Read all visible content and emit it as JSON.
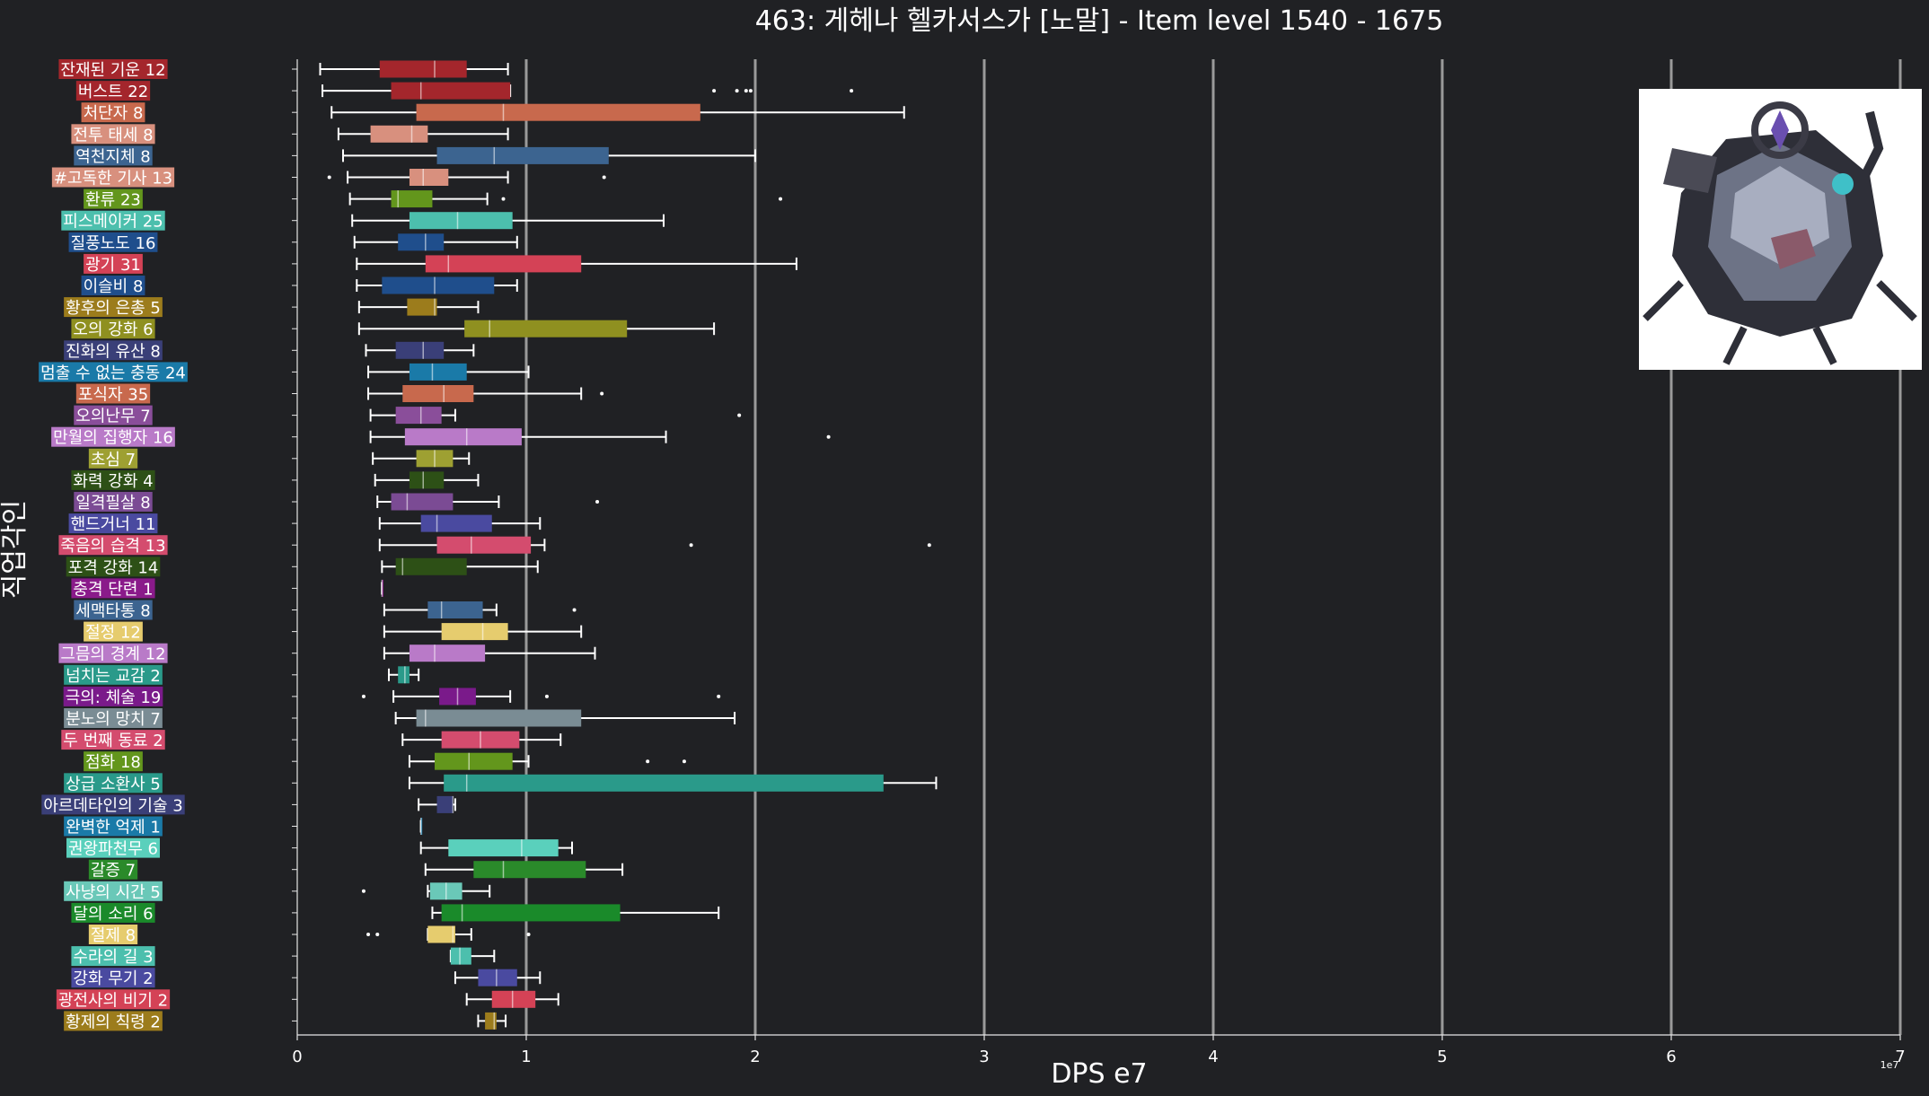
{
  "chart_data": {
    "type": "box",
    "title": "463: 게헤나 헬카서스가 [노말] - Item level 1540 - 1675",
    "xlabel": "DPS e7",
    "ylabel": "직업각인",
    "x_tick_labels": [
      "0",
      "1",
      "2",
      "3",
      "4",
      "5",
      "6",
      "7"
    ],
    "x_ticks": [
      0,
      1,
      2,
      3,
      4,
      5,
      6,
      7
    ],
    "x_offset_label": "1e7",
    "xlim": [
      0,
      7
    ],
    "grid": "vertical",
    "categories": [
      {
        "label": "잔재된 기운 12",
        "color": "#a4262c",
        "whislo": 0.1,
        "q1": 0.36,
        "med": 0.6,
        "q3": 0.74,
        "whishi": 0.92,
        "fliers": []
      },
      {
        "label": "버스트 22",
        "color": "#a4262c",
        "whislo": 0.11,
        "q1": 0.41,
        "med": 0.54,
        "q3": 0.93,
        "whishi": 0.93,
        "fliers": [
          1.82,
          1.92,
          1.96,
          1.98,
          2.42
        ]
      },
      {
        "label": "처단자 8",
        "color": "#c8694d",
        "whislo": 0.15,
        "q1": 0.52,
        "med": 0.9,
        "q3": 1.76,
        "whishi": 2.65,
        "fliers": []
      },
      {
        "label": "전투 태세 8",
        "color": "#d8907e",
        "whislo": 0.18,
        "q1": 0.32,
        "med": 0.5,
        "q3": 0.57,
        "whishi": 0.92,
        "fliers": []
      },
      {
        "label": "역천지체 8",
        "color": "#3c6490",
        "whislo": 0.2,
        "q1": 0.61,
        "med": 0.86,
        "q3": 1.36,
        "whishi": 2.0,
        "fliers": []
      },
      {
        "label": "#고독한 기사 13",
        "color": "#d8907e",
        "whislo": 0.22,
        "q1": 0.49,
        "med": 0.55,
        "q3": 0.66,
        "whishi": 0.92,
        "fliers": [
          0.14,
          1.34
        ]
      },
      {
        "label": "환류 23",
        "color": "#63961c",
        "whislo": 0.23,
        "q1": 0.41,
        "med": 0.44,
        "q3": 0.59,
        "whishi": 0.83,
        "fliers": [
          0.9,
          2.11
        ]
      },
      {
        "label": "피스메이커 25",
        "color": "#4cbfad",
        "whislo": 0.24,
        "q1": 0.49,
        "med": 0.7,
        "q3": 0.94,
        "whishi": 1.6,
        "fliers": []
      },
      {
        "label": "질풍노도 16",
        "color": "#1f4e8c",
        "whislo": 0.25,
        "q1": 0.44,
        "med": 0.56,
        "q3": 0.64,
        "whishi": 0.96,
        "fliers": []
      },
      {
        "label": "광기 31",
        "color": "#d44256",
        "whislo": 0.26,
        "q1": 0.56,
        "med": 0.66,
        "q3": 1.24,
        "whishi": 2.18,
        "fliers": []
      },
      {
        "label": "이슬비 8",
        "color": "#1f4e8c",
        "whislo": 0.26,
        "q1": 0.37,
        "med": 0.6,
        "q3": 0.86,
        "whishi": 0.96,
        "fliers": []
      },
      {
        "label": "황후의 은총 5",
        "color": "#9c7c1c",
        "whislo": 0.27,
        "q1": 0.48,
        "med": 0.6,
        "q3": 0.61,
        "whishi": 0.79,
        "fliers": []
      },
      {
        "label": "오의 강화 6",
        "color": "#8f9020",
        "whislo": 0.27,
        "q1": 0.73,
        "med": 0.84,
        "q3": 1.44,
        "whishi": 1.82,
        "fliers": []
      },
      {
        "label": "진화의 유산 8",
        "color": "#3a3f78",
        "whislo": 0.3,
        "q1": 0.43,
        "med": 0.55,
        "q3": 0.64,
        "whishi": 0.77,
        "fliers": []
      },
      {
        "label": "멈출 수 없는 충동 24",
        "color": "#1a7aa8",
        "whislo": 0.31,
        "q1": 0.49,
        "med": 0.59,
        "q3": 0.74,
        "whishi": 1.01,
        "fliers": []
      },
      {
        "label": "포식자 35",
        "color": "#c8694d",
        "whislo": 0.31,
        "q1": 0.46,
        "med": 0.64,
        "q3": 0.77,
        "whishi": 1.24,
        "fliers": [
          1.33
        ]
      },
      {
        "label": "오의난무 7",
        "color": "#8a4e9a",
        "whislo": 0.32,
        "q1": 0.43,
        "med": 0.54,
        "q3": 0.63,
        "whishi": 0.69,
        "fliers": [
          1.93
        ]
      },
      {
        "label": "만월의 집행자 16",
        "color": "#b97ac8",
        "whislo": 0.32,
        "q1": 0.47,
        "med": 0.74,
        "q3": 0.98,
        "whishi": 1.61,
        "fliers": [
          2.32
        ]
      },
      {
        "label": "초심 7",
        "color": "#9ea032",
        "whislo": 0.33,
        "q1": 0.52,
        "med": 0.6,
        "q3": 0.68,
        "whishi": 0.75,
        "fliers": []
      },
      {
        "label": "화력 강화 4",
        "color": "#2d5016",
        "whislo": 0.34,
        "q1": 0.49,
        "med": 0.55,
        "q3": 0.64,
        "whishi": 0.79,
        "fliers": []
      },
      {
        "label": "일격필살 8",
        "color": "#7b4b94",
        "whislo": 0.35,
        "q1": 0.41,
        "med": 0.48,
        "q3": 0.68,
        "whishi": 0.88,
        "fliers": [
          1.31
        ]
      },
      {
        "label": "핸드거너 11",
        "color": "#4a4aa0",
        "whislo": 0.36,
        "q1": 0.54,
        "med": 0.61,
        "q3": 0.85,
        "whishi": 1.06,
        "fliers": []
      },
      {
        "label": "죽음의 습격 13",
        "color": "#d44c6e",
        "whislo": 0.36,
        "q1": 0.61,
        "med": 0.76,
        "q3": 1.02,
        "whishi": 1.08,
        "fliers": [
          1.72,
          2.76
        ]
      },
      {
        "label": "포격 강화 14",
        "color": "#2d5016",
        "whislo": 0.37,
        "q1": 0.43,
        "med": 0.46,
        "q3": 0.74,
        "whishi": 1.05,
        "fliers": []
      },
      {
        "label": "충격 단련 1",
        "color": "#8a1a8a",
        "whislo": 0.37,
        "q1": 0.37,
        "med": 0.37,
        "q3": 0.37,
        "whishi": 0.37,
        "fliers": []
      },
      {
        "label": "세맥타통 8",
        "color": "#3c6490",
        "whislo": 0.38,
        "q1": 0.57,
        "med": 0.63,
        "q3": 0.81,
        "whishi": 0.87,
        "fliers": [
          1.21
        ]
      },
      {
        "label": "절정 12",
        "color": "#e6cc6e",
        "whislo": 0.38,
        "q1": 0.63,
        "med": 0.81,
        "q3": 0.92,
        "whishi": 1.24,
        "fliers": []
      },
      {
        "label": "그믐의 경계 12",
        "color": "#b97ac8",
        "whislo": 0.38,
        "q1": 0.49,
        "med": 0.6,
        "q3": 0.82,
        "whishi": 1.3,
        "fliers": []
      },
      {
        "label": "넘치는 교감 2",
        "color": "#2a9a8a",
        "whislo": 0.4,
        "q1": 0.44,
        "med": 0.47,
        "q3": 0.49,
        "whishi": 0.53,
        "fliers": []
      },
      {
        "label": "극의: 체술 19",
        "color": "#7a1a8a",
        "whislo": 0.42,
        "q1": 0.62,
        "med": 0.7,
        "q3": 0.78,
        "whishi": 0.93,
        "fliers": [
          0.29,
          1.09,
          1.84
        ]
      },
      {
        "label": "분노의 망치 7",
        "color": "#7a8c94",
        "whislo": 0.43,
        "q1": 0.52,
        "med": 0.56,
        "q3": 1.24,
        "whishi": 1.91,
        "fliers": []
      },
      {
        "label": "두 번째 동료 2",
        "color": "#d44c6e",
        "whislo": 0.46,
        "q1": 0.63,
        "med": 0.8,
        "q3": 0.97,
        "whishi": 1.15,
        "fliers": []
      },
      {
        "label": "점화 18",
        "color": "#63961c",
        "whislo": 0.49,
        "q1": 0.6,
        "med": 0.75,
        "q3": 0.94,
        "whishi": 1.01,
        "fliers": [
          1.53,
          1.69
        ]
      },
      {
        "label": "상급 소환사 5",
        "color": "#2a9a8a",
        "whislo": 0.49,
        "q1": 0.64,
        "med": 0.74,
        "q3": 2.56,
        "whishi": 2.79,
        "fliers": []
      },
      {
        "label": "아르데타인의 기술 3",
        "color": "#3a3f78",
        "whislo": 0.53,
        "q1": 0.61,
        "med": 0.68,
        "q3": 0.68,
        "whishi": 0.69,
        "fliers": []
      },
      {
        "label": "완벽한 억제 1",
        "color": "#1a7aa8",
        "whislo": 0.54,
        "q1": 0.54,
        "med": 0.54,
        "q3": 0.54,
        "whishi": 0.54,
        "fliers": []
      },
      {
        "label": "권왕파천무 6",
        "color": "#5ad0bc",
        "whislo": 0.54,
        "q1": 0.66,
        "med": 0.98,
        "q3": 1.14,
        "whishi": 1.2,
        "fliers": []
      },
      {
        "label": "갈증 7",
        "color": "#2a8a2a",
        "whislo": 0.56,
        "q1": 0.77,
        "med": 0.9,
        "q3": 1.26,
        "whishi": 1.42,
        "fliers": []
      },
      {
        "label": "사냥의 시간 5",
        "color": "#6ac8b8",
        "whislo": 0.57,
        "q1": 0.58,
        "med": 0.65,
        "q3": 0.72,
        "whishi": 0.84,
        "fliers": [
          0.29
        ]
      },
      {
        "label": "달의 소리 6",
        "color": "#1a8a2a",
        "whislo": 0.59,
        "q1": 0.63,
        "med": 0.72,
        "q3": 1.41,
        "whishi": 1.84,
        "fliers": []
      },
      {
        "label": "절제 8",
        "color": "#e6cc6e",
        "whislo": 0.57,
        "q1": 0.57,
        "med": 0.68,
        "q3": 0.69,
        "whishi": 0.76,
        "fliers": [
          0.31,
          0.35,
          1.01
        ]
      },
      {
        "label": "수라의 길 3",
        "color": "#4cbfad",
        "whislo": 0.67,
        "q1": 0.67,
        "med": 0.71,
        "q3": 0.76,
        "whishi": 0.86,
        "fliers": []
      },
      {
        "label": "강화 무기 2",
        "color": "#4a4aa0",
        "whislo": 0.69,
        "q1": 0.79,
        "med": 0.87,
        "q3": 0.96,
        "whishi": 1.06,
        "fliers": []
      },
      {
        "label": "광전사의 비기 2",
        "color": "#d44256",
        "whislo": 0.74,
        "q1": 0.85,
        "med": 0.94,
        "q3": 1.04,
        "whishi": 1.14,
        "fliers": []
      },
      {
        "label": "황제의 칙령 2",
        "color": "#9c7c1c",
        "whislo": 0.79,
        "q1": 0.82,
        "med": 0.86,
        "q3": 0.87,
        "whishi": 0.91,
        "fliers": []
      }
    ]
  },
  "colors": {
    "background": "#202124",
    "text": "#ffffff",
    "grid": "#9a9a9a",
    "whisker": "#ffffff"
  },
  "portrait": {
    "icon": "boss-portrait-icon"
  }
}
